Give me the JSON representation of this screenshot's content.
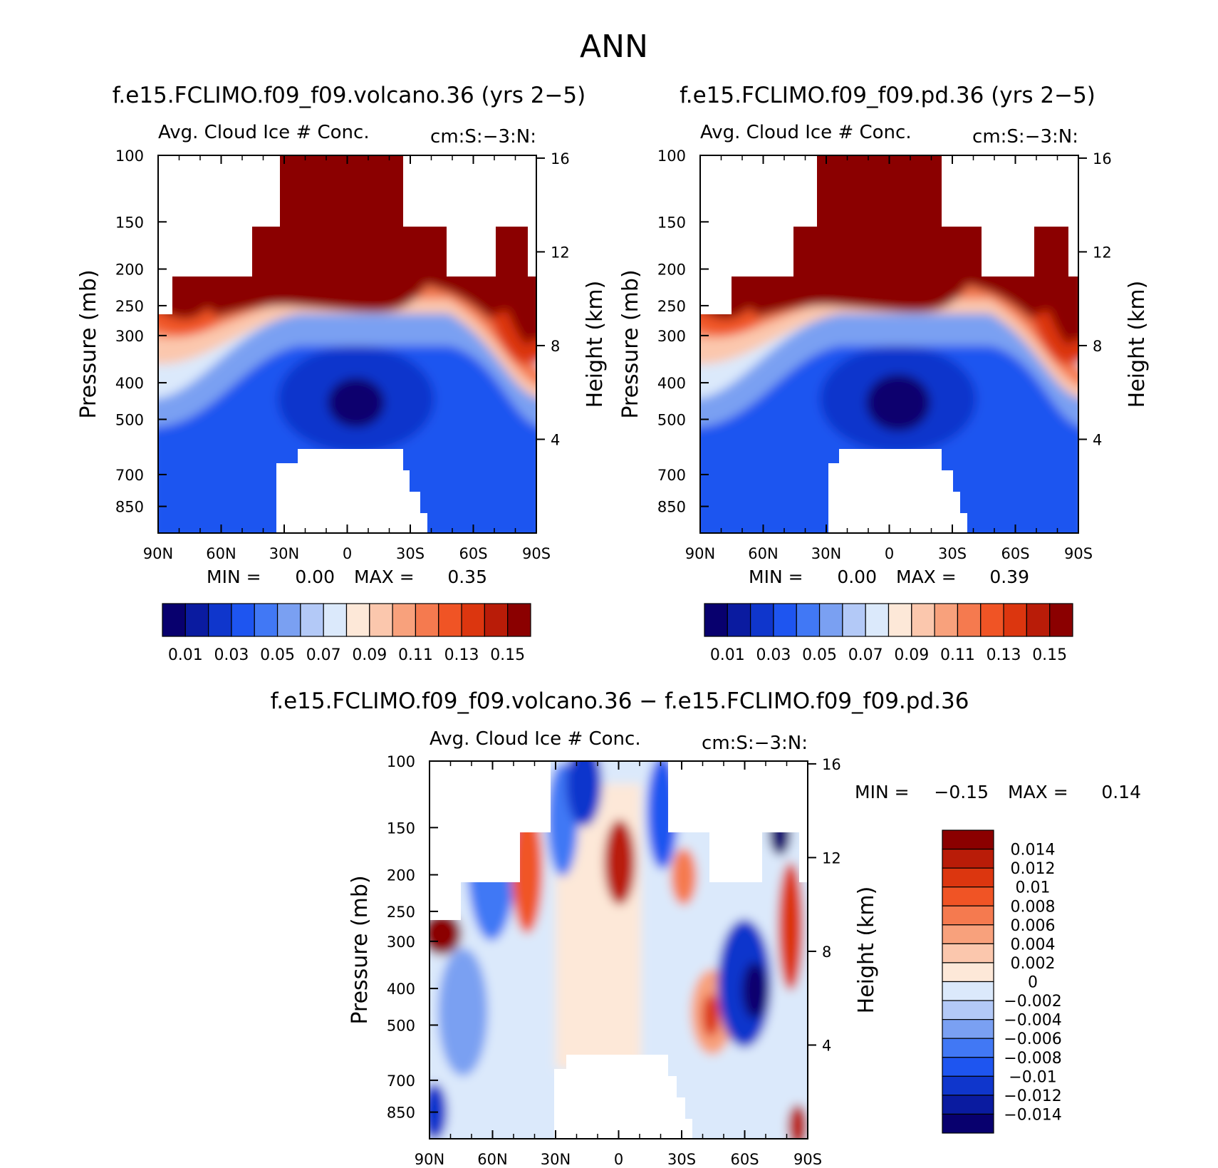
{
  "figure_title": "ANN",
  "chart_data": [
    {
      "type": "heatmap",
      "panel": "top-left",
      "case_title": "f.e15.FCLIMO.f09_f09.volcano.36 (yrs 2−5)",
      "variable": "Avg. Cloud Ice # Conc.",
      "units": "cm:S:−3:N:",
      "ylabel": "Pressure (mb)",
      "y2label": "Height (km)",
      "x_ticks": [
        "90N",
        "60N",
        "30N",
        "0",
        "30S",
        "60S",
        "90S"
      ],
      "y_ticks": [
        "100",
        "150",
        "200",
        "250",
        "300",
        "400",
        "500",
        "700",
        "850"
      ],
      "y2_ticks": [
        "16",
        "12",
        "8",
        "4"
      ],
      "stats": {
        "min_label": "MIN =",
        "min": "0.00",
        "max_label": "MAX =",
        "max": "0.35"
      },
      "colorbar": {
        "orientation": "horizontal",
        "labels": [
          "0.01",
          "0.03",
          "0.05",
          "0.07",
          "0.09",
          "0.11",
          "0.13",
          "0.15"
        ],
        "levels_min": 0.01,
        "levels_max": 0.15,
        "bins": 16
      }
    },
    {
      "type": "heatmap",
      "panel": "top-right",
      "case_title": "f.e15.FCLIMO.f09_f09.pd.36 (yrs 2−5)",
      "variable": "Avg. Cloud Ice # Conc.",
      "units": "cm:S:−3:N:",
      "ylabel": "Pressure (mb)",
      "y2label": "Height (km)",
      "x_ticks": [
        "90N",
        "60N",
        "30N",
        "0",
        "30S",
        "60S",
        "90S"
      ],
      "y_ticks": [
        "100",
        "150",
        "200",
        "250",
        "300",
        "400",
        "500",
        "700",
        "850"
      ],
      "y2_ticks": [
        "16",
        "12",
        "8",
        "4"
      ],
      "stats": {
        "min_label": "MIN =",
        "min": "0.00",
        "max_label": "MAX =",
        "max": "0.39"
      },
      "colorbar": {
        "orientation": "horizontal",
        "labels": [
          "0.01",
          "0.03",
          "0.05",
          "0.07",
          "0.09",
          "0.11",
          "0.13",
          "0.15"
        ],
        "levels_min": 0.01,
        "levels_max": 0.15,
        "bins": 16
      }
    },
    {
      "type": "heatmap",
      "panel": "bottom",
      "case_title": "f.e15.FCLIMO.f09_f09.volcano.36 − f.e15.FCLIMO.f09_f09.pd.36",
      "variable": "Avg. Cloud Ice # Conc.",
      "units": "cm:S:−3:N:",
      "ylabel": "Pressure (mb)",
      "y2label": "Height (km)",
      "x_ticks": [
        "90N",
        "60N",
        "30N",
        "0",
        "30S",
        "60S",
        "90S"
      ],
      "y_ticks": [
        "100",
        "150",
        "200",
        "250",
        "300",
        "400",
        "500",
        "700",
        "850"
      ],
      "y2_ticks": [
        "16",
        "12",
        "8",
        "4"
      ],
      "stats": {
        "min_label": "MIN =",
        "min": "−0.15",
        "max_label": "MAX =",
        "max": "0.14"
      },
      "colorbar": {
        "orientation": "vertical",
        "labels": [
          "0.014",
          "0.012",
          "0.01",
          "0.008",
          "0.006",
          "0.004",
          "0.002",
          "0",
          "−0.002",
          "−0.004",
          "−0.006",
          "−0.008",
          "−0.01",
          "−0.012",
          "−0.014"
        ],
        "levels_min": -0.014,
        "levels_max": 0.014,
        "bins": 16
      }
    }
  ],
  "colors": {
    "diverging": [
      "#08006e",
      "#0a1ba0",
      "#0f36cc",
      "#1e55f0",
      "#4178f5",
      "#7aa0f2",
      "#b3c9f7",
      "#dbe9fb",
      "#fde8d8",
      "#fbc7ad",
      "#f8a17c",
      "#f57a4f",
      "#f05425",
      "#dc360f",
      "#b91c08",
      "#8b0000"
    ]
  }
}
